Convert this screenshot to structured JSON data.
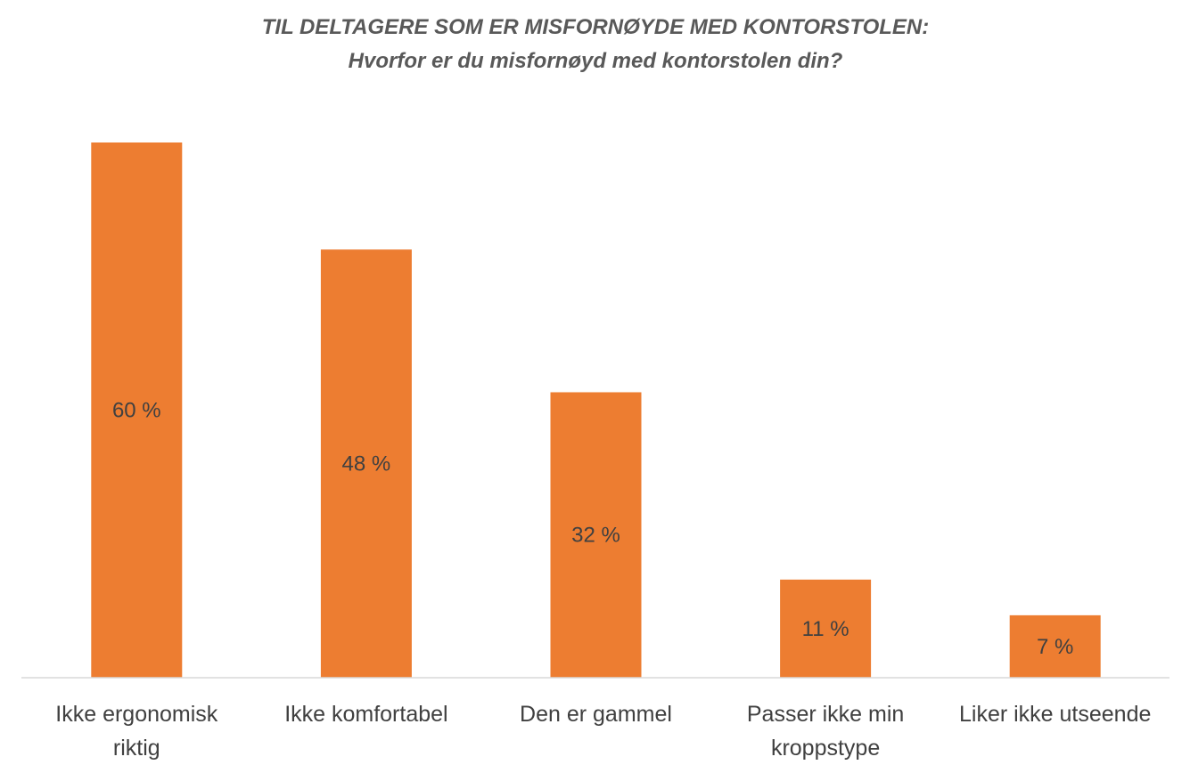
{
  "chart_data": {
    "type": "bar",
    "title": "TIL DELTAGERE SOM ER MISFORNØYDE MED KONTORSTOLEN:",
    "subtitle": "Hvorfor er du misfornøyd med kontorstolen din?",
    "categories": [
      [
        "Ikke ergonomisk",
        "riktig"
      ],
      [
        "Ikke komfortabel"
      ],
      [
        "Den er gammel"
      ],
      [
        "Passer ikke min",
        "kroppstype"
      ],
      [
        "Liker ikke utseende"
      ]
    ],
    "values": [
      60,
      48,
      32,
      11,
      7
    ],
    "data_labels": [
      "60 %",
      "48 %",
      "32 %",
      "11 %",
      "7 %"
    ],
    "xlabel": "",
    "ylabel": "",
    "ylim": [
      0,
      60
    ],
    "grid": false,
    "bar_color": "#ED7D31",
    "axis_color": "#D9D9D9"
  }
}
